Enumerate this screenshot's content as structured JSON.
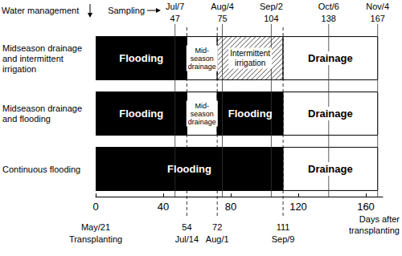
{
  "chart_data": {
    "type": "gantt",
    "header": "Water management",
    "sampling_label": "Sampling",
    "x_label": "Days after\ntransplanting",
    "xlim": [
      0,
      170
    ],
    "xticks": [
      0,
      40,
      80,
      120,
      160
    ],
    "sampling": [
      {
        "day": 47,
        "date": "Jul/7"
      },
      {
        "day": 75,
        "date": "Aug/4"
      },
      {
        "day": 104,
        "date": "Sep/2"
      },
      {
        "day": 138,
        "date": "Oct/6"
      },
      {
        "day": 167,
        "date": "Nov/4"
      }
    ],
    "events": [
      {
        "day": 0,
        "date": "May/21",
        "label": "Transplanting"
      },
      {
        "day": 54,
        "date": "Jul/14"
      },
      {
        "day": 72,
        "date": "Aug/1"
      },
      {
        "day": 111,
        "date": "Sep/9"
      }
    ],
    "rows": [
      {
        "name": "Midseason drainage\nand intermittent\nirrigation",
        "segments": [
          {
            "label": "Flooding",
            "start": 0,
            "end": 54,
            "color": "#000000"
          },
          {
            "label": "Mid-\nseason\ndrainage",
            "start": 54,
            "end": 72,
            "color": "#ffffff"
          },
          {
            "label": "Intermittent\nirrigation",
            "start": 72,
            "end": 111,
            "color": "#ffffff",
            "fill": "hatch"
          },
          {
            "label": "Drainage",
            "start": 111,
            "end": 167,
            "color": "#ffffff"
          }
        ]
      },
      {
        "name": "Midseason drainage\nand flooding",
        "segments": [
          {
            "label": "Flooding",
            "start": 0,
            "end": 54,
            "color": "#000000"
          },
          {
            "label": "Mid-\nseason\ndrainage",
            "start": 54,
            "end": 72,
            "color": "#ffffff"
          },
          {
            "label": "Flooding",
            "start": 72,
            "end": 111,
            "color": "#000000"
          },
          {
            "label": "Drainage",
            "start": 111,
            "end": 167,
            "color": "#ffffff"
          }
        ]
      },
      {
        "name": "Continuous flooding",
        "segments": [
          {
            "label": "Flooding",
            "start": 0,
            "end": 111,
            "color": "#000000"
          },
          {
            "label": "Drainage",
            "start": 111,
            "end": 167,
            "color": "#ffffff"
          }
        ]
      }
    ]
  }
}
